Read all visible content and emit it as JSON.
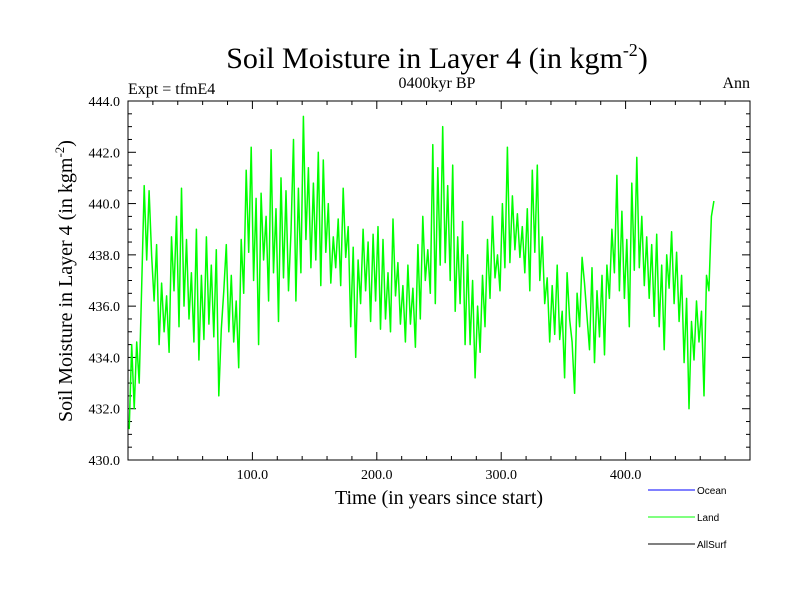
{
  "chart_data": {
    "type": "line",
    "title": "Soil Moisture in Layer 4 (in kgm",
    "title_sup": "-2",
    "title_close": ")",
    "subtitle": "0400kyr BP",
    "left_label": "Expt = tfmE4",
    "right_label": "Ann",
    "xlabel": "Time (in years since start)",
    "ylabel": "Soil Moisture in Layer 4 (in kgm",
    "ylabel_sup": "-2",
    "ylabel_close": ")",
    "xlim": [
      0,
      500
    ],
    "ylim": [
      430,
      444
    ],
    "xticks": [
      100,
      200,
      300,
      400
    ],
    "xtick_labels": [
      "100.0",
      "200.0",
      "300.0",
      "400.0"
    ],
    "yticks": [
      430,
      432,
      434,
      436,
      438,
      440,
      442,
      444
    ],
    "ytick_labels": [
      "430.0",
      "432.0",
      "434.0",
      "436.0",
      "438.0",
      "440.0",
      "442.0",
      "444.0"
    ],
    "legend": [
      {
        "name": "Ocean",
        "color": "#0000ff"
      },
      {
        "name": "Land",
        "color": "#00ff00"
      },
      {
        "name": "AllSurf",
        "color": "#000000"
      }
    ],
    "series": [
      {
        "name": "Land",
        "color": "#00ff00",
        "x_start": 1,
        "x_step": 2,
        "values": [
          431.2,
          434.5,
          432.0,
          434.6,
          433.0,
          436.8,
          440.7,
          437.8,
          440.5,
          438.0,
          436.2,
          438.4,
          434.5,
          436.9,
          435.0,
          436.4,
          434.2,
          438.7,
          436.6,
          439.5,
          435.2,
          440.6,
          436.0,
          438.6,
          435.5,
          437.3,
          434.6,
          439.0,
          433.9,
          437.2,
          434.7,
          438.7,
          435.3,
          437.6,
          434.8,
          438.2,
          432.5,
          435.1,
          436.6,
          438.4,
          435.0,
          437.2,
          434.6,
          436.2,
          433.6,
          438.6,
          436.5,
          441.3,
          438.1,
          442.2,
          437.0,
          440.2,
          434.5,
          440.4,
          437.8,
          439.5,
          436.2,
          442.1,
          437.3,
          439.8,
          435.4,
          441.0,
          437.1,
          440.5,
          436.6,
          438.9,
          442.5,
          436.2,
          440.6,
          437.3,
          443.4,
          438.6,
          441.4,
          437.5,
          440.8,
          437.8,
          442.0,
          436.8,
          441.7,
          438.1,
          440.0,
          436.9,
          438.7,
          437.5,
          439.4,
          436.8,
          440.6,
          437.9,
          439.1,
          435.2,
          438.3,
          434.0,
          437.8,
          436.1,
          439.0,
          436.6,
          438.5,
          435.4,
          438.8,
          436.2,
          439.1,
          435.1,
          438.6,
          435.5,
          437.3,
          435.0,
          439.4,
          436.4,
          437.7,
          435.3,
          436.8,
          434.6,
          437.6,
          435.3,
          436.7,
          434.4,
          438.4,
          435.5,
          439.5,
          437.0,
          438.2,
          436.5,
          442.3,
          436.1,
          441.4,
          437.6,
          443.0,
          437.7,
          440.7,
          437.0,
          441.5,
          435.8,
          438.7,
          436.1,
          439.3,
          434.5,
          438.0,
          434.5,
          437.0,
          433.2,
          436.0,
          434.2,
          437.2,
          435.2,
          438.6,
          436.3,
          439.5,
          437.1,
          438.0,
          436.6,
          440.0,
          437.5,
          442.2,
          437.7,
          440.3,
          438.2,
          439.6,
          437.9,
          439.1,
          437.3,
          439.8,
          436.6,
          441.3,
          438.1,
          441.5,
          437.0,
          438.7,
          436.1,
          437.1,
          434.6,
          436.8,
          434.9,
          437.6,
          434.7,
          435.8,
          433.2,
          437.3,
          435.5,
          434.6,
          432.6,
          436.5,
          435.2,
          437.9,
          436.9,
          435.6,
          434.3,
          437.5,
          433.8,
          436.6,
          434.8,
          437.2,
          434.1,
          437.6,
          436.3,
          439.0,
          437.3,
          441.1,
          436.6,
          439.7,
          436.3,
          438.6,
          435.2,
          440.8,
          437.4,
          441.8,
          437.5,
          439.5,
          436.8,
          438.7,
          436.3,
          438.4,
          435.6,
          438.8,
          435.2,
          437.6,
          434.3,
          438.0,
          436.7,
          438.9,
          436.1,
          438.1,
          435.4,
          437.2,
          433.8,
          436.3,
          432.0,
          435.4,
          433.9,
          436.2,
          434.6,
          435.8,
          432.5,
          437.2,
          436.6,
          439.5,
          440.1
        ]
      }
    ]
  }
}
